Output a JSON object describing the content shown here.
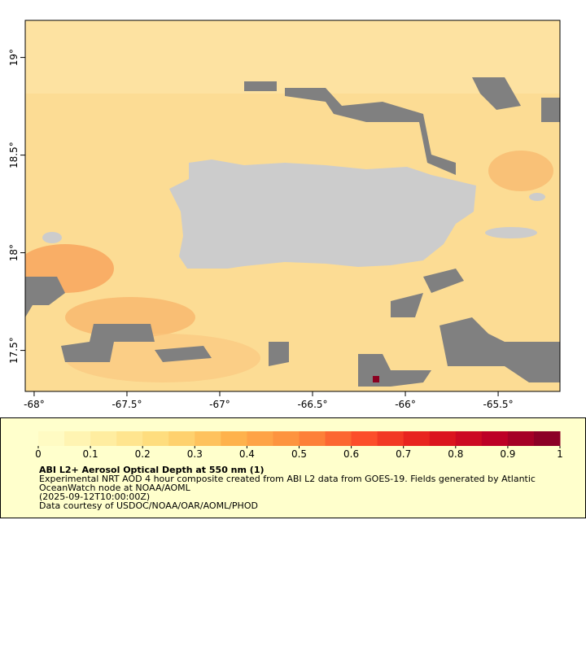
{
  "map": {
    "xlim": [
      -68.048,
      -65.167
    ],
    "ylim": [
      17.29,
      19.19
    ],
    "xticks": [
      {
        "value": -68,
        "label": "-68°"
      },
      {
        "value": -67.5,
        "label": "-67.5°"
      },
      {
        "value": -67,
        "label": "-67°"
      },
      {
        "value": -66.5,
        "label": "-66.5°"
      },
      {
        "value": -66,
        "label": "-66°"
      },
      {
        "value": -65.5,
        "label": "-65.5°"
      }
    ],
    "yticks": [
      {
        "value": 17.5,
        "label": "17.5°"
      },
      {
        "value": 18,
        "label": "18°"
      },
      {
        "value": 18.5,
        "label": "18.5°"
      },
      {
        "value": 19,
        "label": "19°"
      }
    ]
  },
  "colorbar": {
    "lim": [
      0,
      1
    ],
    "ticks": [
      0,
      0.1,
      0.2,
      0.3,
      0.4,
      0.5,
      0.6,
      0.7,
      0.8,
      0.9,
      1
    ]
  },
  "legend": {
    "title": "ABI L2+ Aerosol Optical Depth at 550 nm (1)",
    "lines": [
      "Experimental NRT AOD 4 hour composite created from ABI L2 data from GOES-19. Fields generated by Atlantic",
      "OceanWatch node at NOAA/AOML",
      "(2025-09-12T10:00:00Z)",
      "Data courtesy of USDOC/NOAA/OAR/AOML/PHOD"
    ]
  }
}
